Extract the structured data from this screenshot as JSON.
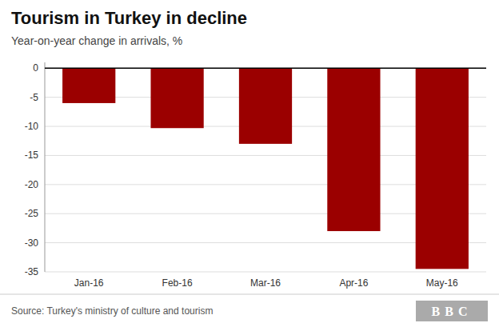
{
  "chart_data": {
    "type": "bar",
    "title": "Tourism in Turkey in decline",
    "subtitle": "Year-on-year change in arrivals, %",
    "categories": [
      "Jan-16",
      "Feb-16",
      "Mar-16",
      "Apr-16",
      "May-16"
    ],
    "values": [
      -6.0,
      -10.3,
      -13.0,
      -28.0,
      -34.5
    ],
    "color": "#9b0000",
    "ylim": [
      -35,
      1
    ],
    "yticks": [
      0,
      -5,
      -10,
      -15,
      -20,
      -25,
      -30,
      -35
    ],
    "grid": true,
    "annotations": [
      "Source: Turkey's ministry of culture and tourism",
      "BBC"
    ]
  }
}
